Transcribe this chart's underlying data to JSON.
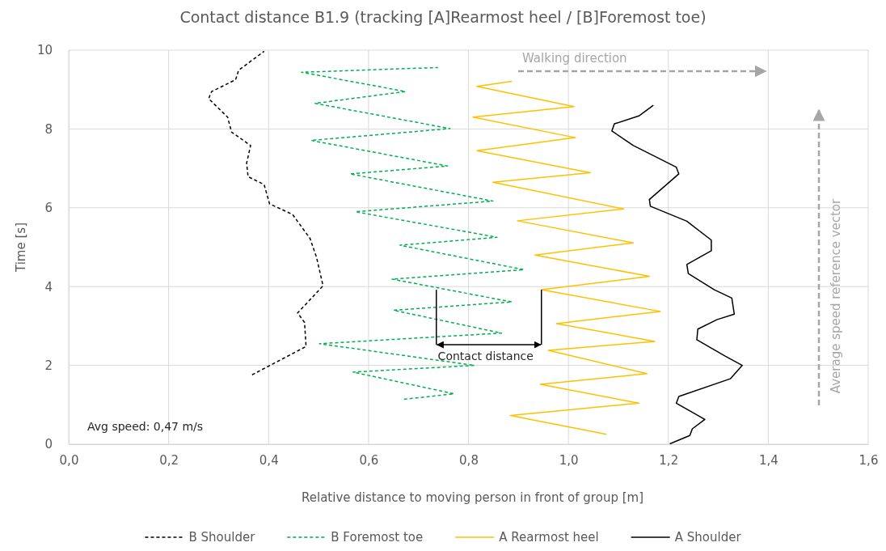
{
  "chart_data": {
    "type": "line",
    "title": "Contact distance B1.9 (tracking [A]Rearmost heel / [B]Foremost toe)",
    "xlabel": "Relative distance to moving person in front of group [m]",
    "ylabel": "Time [s]",
    "xlim": [
      0,
      1.6
    ],
    "xticks": [
      {
        "value": 0,
        "label": "0,0"
      },
      {
        "value": 0.2,
        "label": "0,2"
      },
      {
        "value": 0.4,
        "label": "0,4"
      },
      {
        "value": 0.6,
        "label": "0,6"
      },
      {
        "value": 0.8,
        "label": "0,8"
      },
      {
        "value": 1.0,
        "label": "1,0"
      },
      {
        "value": 1.2,
        "label": "1,2"
      },
      {
        "value": 1.4,
        "label": "1,4"
      },
      {
        "value": 1.6,
        "label": "1,6"
      }
    ],
    "ylim": [
      0,
      10
    ],
    "yticks": [
      0,
      2,
      4,
      6,
      8,
      10
    ],
    "grid": true,
    "legend": "bottom",
    "series": [
      {
        "name": "B Shoulder",
        "color": "#000000",
        "line_style": "dashed",
        "x": [
          0.367,
          0.475,
          0.472,
          0.458,
          0.509,
          0.496,
          0.483,
          0.448,
          0.402,
          0.391,
          0.359,
          0.356,
          0.364,
          0.326,
          0.318,
          0.28,
          0.286,
          0.334,
          0.34,
          0.391
        ],
        "values": [
          1.76,
          2.48,
          3.09,
          3.33,
          4.02,
          4.74,
          5.22,
          5.83,
          6.1,
          6.59,
          6.79,
          7.13,
          7.58,
          7.92,
          8.3,
          8.77,
          8.95,
          9.25,
          9.49,
          9.97
        ]
      },
      {
        "name": "B Foremost toe",
        "color": "#00b050",
        "line_style": "dashed",
        "x": [
          0.671,
          0.771,
          0.569,
          0.812,
          0.502,
          0.866,
          0.65,
          0.887,
          0.647,
          0.911,
          0.663,
          0.857,
          0.574,
          0.849,
          0.563,
          0.758,
          0.485,
          0.763,
          0.493,
          0.674,
          0.466,
          0.739
        ],
        "values": [
          1.14,
          1.28,
          1.83,
          2.0,
          2.55,
          2.82,
          3.4,
          3.61,
          4.19,
          4.43,
          5.05,
          5.25,
          5.9,
          6.17,
          6.86,
          7.06,
          7.71,
          8.01,
          8.65,
          8.95,
          9.44,
          9.56
        ]
      },
      {
        "name": "A Rearmost heel",
        "color": "#ffc000",
        "line_style": "solid",
        "x": [
          1.076,
          0.884,
          1.141,
          0.944,
          1.157,
          0.96,
          1.173,
          0.976,
          1.184,
          0.946,
          1.162,
          0.933,
          1.13,
          0.898,
          1.111,
          0.849,
          1.044,
          0.817,
          1.014,
          0.809,
          1.011,
          0.817,
          0.887
        ],
        "values": [
          0.25,
          0.73,
          1.04,
          1.52,
          1.79,
          2.38,
          2.61,
          3.06,
          3.37,
          3.92,
          4.26,
          4.8,
          5.11,
          5.67,
          5.97,
          6.65,
          6.89,
          7.45,
          7.78,
          8.3,
          8.57,
          9.08,
          9.21
        ]
      },
      {
        "name": "A Shoulder",
        "color": "#000000",
        "line_style": "solid",
        "x": [
          1.203,
          1.243,
          1.248,
          1.273,
          1.216,
          1.221,
          1.324,
          1.348,
          1.313,
          1.257,
          1.259,
          1.297,
          1.332,
          1.327,
          1.292,
          1.24,
          1.237,
          1.286,
          1.286,
          1.237,
          1.164,
          1.162,
          1.221,
          1.216,
          1.13,
          1.087,
          1.092,
          1.141,
          1.17
        ],
        "values": [
          0.01,
          0.22,
          0.39,
          0.63,
          1.04,
          1.21,
          1.66,
          2.0,
          2.24,
          2.65,
          2.92,
          3.16,
          3.3,
          3.71,
          3.92,
          4.33,
          4.56,
          4.91,
          5.18,
          5.66,
          6.04,
          6.21,
          6.86,
          7.03,
          7.58,
          7.95,
          8.13,
          8.33,
          8.6
        ]
      }
    ],
    "annotations": [
      {
        "text": "Contact distance",
        "x": 0.946,
        "y": 3.92
      },
      "Walking direction",
      "Average speed reference vector",
      "Avg speed: 0,47 m/s"
    ]
  }
}
